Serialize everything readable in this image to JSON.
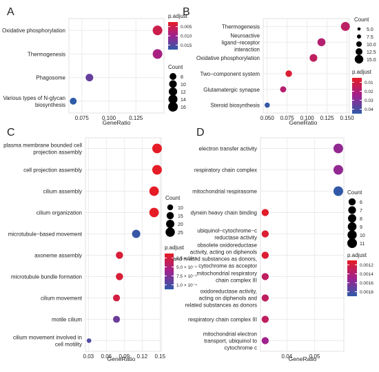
{
  "chart_data": [
    {
      "panel_label": "A",
      "type": "scatter",
      "xlabel": "GeneRatio",
      "xticks": [
        0.075,
        0.1,
        0.125
      ],
      "xtick_labels": [
        "0.075",
        "0.100",
        "0.125"
      ],
      "xlim": [
        0.063,
        0.151
      ],
      "categories": [
        "Oxidative phosphorylation",
        "Thermogenesis",
        "Phagosome",
        "Various types of N-glycan biosynthesis"
      ],
      "points": [
        {
          "category": "Oxidative phosphorylation",
          "x": 0.145,
          "count": 16,
          "p_adjust": 0.006
        },
        {
          "category": "Thermogenesis",
          "x": 0.145,
          "count": 16,
          "p_adjust": 0.01
        },
        {
          "category": "Phagosome",
          "x": 0.082,
          "count": 10,
          "p_adjust": 0.015
        },
        {
          "category": "Various types of N-glycan biosynthesis",
          "x": 0.067,
          "count": 8,
          "p_adjust": 0.019
        }
      ],
      "color_legend": {
        "title": "p.adjust",
        "ticks": [
          "0.005",
          "0.010",
          "0.015"
        ],
        "range": [
          0.003,
          0.019
        ]
      },
      "size_legend": {
        "title": "Count",
        "values": [
          8,
          10,
          12,
          14,
          16
        ]
      }
    },
    {
      "panel_label": "B",
      "type": "scatter",
      "xlabel": "GeneRatio",
      "xticks": [
        0.05,
        0.075,
        0.1,
        0.125,
        0.15
      ],
      "xtick_labels": [
        "0.050",
        "0.075",
        "0.100",
        "0.125",
        "0.150"
      ],
      "xlim": [
        0.045,
        0.153
      ],
      "categories": [
        "Thermogenesis",
        "Neuroactive ligand−receptor interaction",
        "Oxidative phosphorylation",
        "Two−component system",
        "Glutamatergic synapse",
        "Steroid biosynthesis"
      ],
      "points": [
        {
          "category": "Thermogenesis",
          "x": 0.148,
          "count": 15,
          "p_adjust": 0.015
        },
        {
          "category": "Neuroactive ligand−receptor interaction",
          "x": 0.118,
          "count": 12,
          "p_adjust": 0.017
        },
        {
          "category": "Oxidative phosphorylation",
          "x": 0.108,
          "count": 11,
          "p_adjust": 0.014
        },
        {
          "category": "Two−component system",
          "x": 0.077,
          "count": 8,
          "p_adjust": 0.006
        },
        {
          "category": "Glutamatergic synapse",
          "x": 0.07,
          "count": 7,
          "p_adjust": 0.017
        },
        {
          "category": "Steroid biosynthesis",
          "x": 0.05,
          "count": 5,
          "p_adjust": 0.042
        }
      ],
      "color_legend": {
        "title": "p.adjust",
        "ticks": [
          "0.01",
          "0.02",
          "0.03",
          "0.04"
        ],
        "range": [
          0.003,
          0.043
        ]
      },
      "size_legend": {
        "title": "Count",
        "values": [
          5.0,
          7.5,
          10.0,
          12.5,
          15.0
        ],
        "labels": [
          "5.0",
          "7.5",
          "10.0",
          "12.5",
          "15.0"
        ]
      }
    },
    {
      "panel_label": "C",
      "type": "scatter",
      "xlabel": "GeneRatio",
      "xticks": [
        0.03,
        0.06,
        0.09,
        0.12,
        0.15
      ],
      "xtick_labels": [
        "0.03",
        "0.06",
        "0.09",
        "0.12",
        "0.15"
      ],
      "xlim": [
        0.025,
        0.152
      ],
      "categories": [
        "plasma membrane bounded cell projection assembly",
        "cell projection assembly",
        "cilium assembly",
        "cilium organization",
        "microtubule−based movement",
        "axoneme assembly",
        "microtubule bundle formation",
        "cilium movement",
        "motile cilium",
        "cilium movement involved in cell motility"
      ],
      "category_lines": [
        [
          "plasma membrane bounded cell",
          "projection assembly"
        ],
        [
          "cell projection assembly"
        ],
        [
          "cilium assembly"
        ],
        [
          "cilium organization"
        ],
        [
          "microtubule−based movement"
        ],
        [
          "axoneme assembly"
        ],
        [
          "microtubule bundle formation"
        ],
        [
          "cilium movement"
        ],
        [
          "motile cilium"
        ],
        [
          "cilium movement involved in",
          "cell motility"
        ]
      ],
      "points": [
        {
          "category": "plasma membrane bounded cell projection assembly",
          "x": 0.145,
          "count": 27,
          "p_adjust": 1e-06
        },
        {
          "category": "cell projection assembly",
          "x": 0.145,
          "count": 27,
          "p_adjust": 1e-06
        },
        {
          "category": "cilium assembly",
          "x": 0.14,
          "count": 26,
          "p_adjust": 1e-06
        },
        {
          "category": "cilium organization",
          "x": 0.14,
          "count": 26,
          "p_adjust": 1e-06
        },
        {
          "category": "microtubule−based movement",
          "x": 0.11,
          "count": 20,
          "p_adjust": 0.000105
        },
        {
          "category": "axoneme assembly",
          "x": 0.082,
          "count": 15,
          "p_adjust": 1e-05
        },
        {
          "category": "microtubule bundle formation",
          "x": 0.082,
          "count": 15,
          "p_adjust": 1e-05
        },
        {
          "category": "cilium movement",
          "x": 0.077,
          "count": 14,
          "p_adjust": 1.5e-05
        },
        {
          "category": "motile cilium",
          "x": 0.077,
          "count": 14,
          "p_adjust": 8e-05
        },
        {
          "category": "cilium movement involved in cell motility",
          "x": 0.031,
          "count": 6,
          "p_adjust": 9.5e-05
        }
      ],
      "color_legend": {
        "title": "p.adjust",
        "ticks": [
          "2.5 × 10⁻⁵",
          "5.0 × 10⁻⁵",
          "7.5 × 10⁻⁵",
          "1.0 × 10⁻⁴"
        ],
        "range": [
          0.0,
          0.00011
        ]
      },
      "size_legend": {
        "title": "Count",
        "values": [
          10,
          15,
          20,
          25
        ]
      }
    },
    {
      "panel_label": "D",
      "type": "scatter",
      "xlabel": "GeneRatio",
      "xticks": [
        0.04,
        0.05
      ],
      "xtick_labels": [
        "0.04",
        "0.05"
      ],
      "xlim": [
        0.0305,
        0.0605
      ],
      "categories": [
        "electron transfer activity",
        "respiratory chain complex",
        "mitochondrial respirasome",
        "dynein heavy chain binding",
        "ubiquinol−cytochrome−c reductase activity",
        "obsolete oxidoreductase activity, acting on diphenols and related substances as donors, cytochrome as acceptor",
        "mitochondrial respiratory chain complex III",
        "oxidoreductase activity, acting on diphenols and related substances as donors",
        "respiratory chain complex III",
        "mitochondrial electron transport, ubiquinol to cytochrome c"
      ],
      "category_lines": [
        [
          "electron transfer activity"
        ],
        [
          "respiratory chain complex"
        ],
        [
          "mitochondrial respirasome"
        ],
        [
          "dynein heavy chain binding"
        ],
        [
          "ubiquinol−cytochrome−c",
          "reductase activity"
        ],
        [
          "obsolete oxidoreductase",
          "activity, acting on diphenols",
          "and related substances as donors,",
          "cytochrome as acceptor"
        ],
        [
          "mitochondrial respiratory",
          "chain complex III"
        ],
        [
          "oxidoreductase activity,",
          "acting on diphenols and",
          "related substances as donors"
        ],
        [
          "respiratory chain complex III"
        ],
        [
          "mitochondrial electron",
          "transport, ubiquinol to",
          "cytochrome c"
        ]
      ],
      "points": [
        {
          "category": "electron transfer activity",
          "x": 0.0585,
          "count": 11,
          "p_adjust": 0.0015
        },
        {
          "category": "respiratory chain complex",
          "x": 0.0585,
          "count": 11,
          "p_adjust": 0.0015
        },
        {
          "category": "mitochondrial respirasome",
          "x": 0.0585,
          "count": 11,
          "p_adjust": 0.00181
        },
        {
          "category": "dynein heavy chain binding",
          "x": 0.0322,
          "count": 6,
          "p_adjust": 0.00112
        },
        {
          "category": "ubiquinol−cytochrome−c reductase activity",
          "x": 0.0322,
          "count": 6,
          "p_adjust": 0.00115
        },
        {
          "category": "obsolete oxidoreductase activity, acting on diphenols and related substances as donors, cytochrome as acceptor",
          "x": 0.0322,
          "count": 6,
          "p_adjust": 0.00115
        },
        {
          "category": "mitochondrial respiratory chain complex III",
          "x": 0.0322,
          "count": 6,
          "p_adjust": 0.0013
        },
        {
          "category": "oxidoreductase activity, acting on diphenols and related substances as donors",
          "x": 0.0322,
          "count": 6,
          "p_adjust": 0.0013
        },
        {
          "category": "respiratory chain complex III",
          "x": 0.0322,
          "count": 6,
          "p_adjust": 0.0013
        },
        {
          "category": "mitochondrial electron transport, ubiquinol to cytochrome c",
          "x": 0.0322,
          "count": 6,
          "p_adjust": 0.00145
        }
      ],
      "color_legend": {
        "title": "p.adjust",
        "ticks": [
          "0.0012",
          "0.0014",
          "0.0016",
          "0.0018"
        ],
        "range": [
          0.0011,
          0.00182
        ]
      },
      "size_legend": {
        "title": "Count",
        "values": [
          6,
          7,
          8,
          9,
          10,
          11
        ]
      }
    }
  ]
}
